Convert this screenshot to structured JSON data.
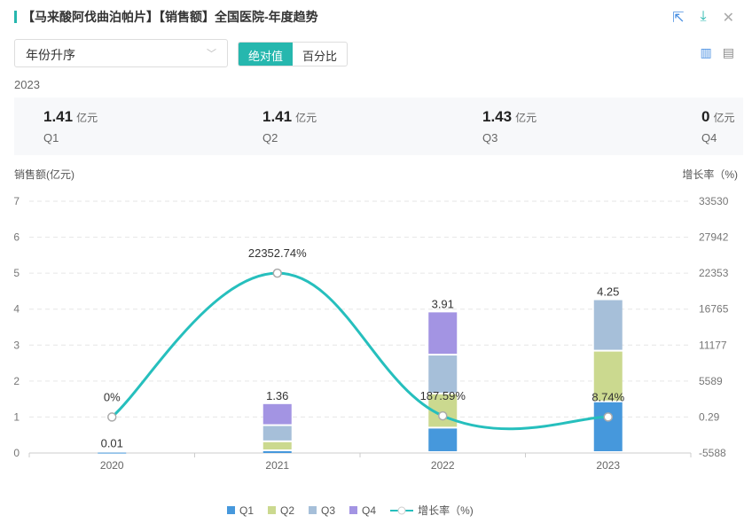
{
  "header": {
    "title": "【马来酸阿伐曲泊帕片】【销售额】全国医院-年度趋势"
  },
  "icons": {
    "export": "external-link-icon",
    "download": "download-icon",
    "close": "close-icon",
    "bar": "bar-chart-icon",
    "doc": "document-icon"
  },
  "controls": {
    "sort_value": "年份升序",
    "seg_abs": "绝对值",
    "seg_pct": "百分比"
  },
  "summary": {
    "year": "2023",
    "unit": "亿元",
    "items": [
      {
        "value": "1.41",
        "label": "Q1"
      },
      {
        "value": "1.41",
        "label": "Q2"
      },
      {
        "value": "1.43",
        "label": "Q3"
      },
      {
        "value": "0",
        "label": "Q4"
      }
    ]
  },
  "colors": {
    "Q1": "#4698dc",
    "Q2": "#cbd98f",
    "Q3": "#a6bfd9",
    "Q4": "#a394e3",
    "line": "#26bfbd",
    "accent": "#26b7ae"
  },
  "chart_data": {
    "type": "bar",
    "categories": [
      "2020",
      "2021",
      "2022",
      "2023"
    ],
    "ylabel": "销售额(亿元)",
    "y2label": "增长率（%)",
    "ylim": [
      0,
      7
    ],
    "yticks": [
      "0",
      "1",
      "2",
      "3",
      "4",
      "5",
      "6",
      "7"
    ],
    "y2lim": [
      -5588,
      33530
    ],
    "y2ticks": [
      "-5588",
      "0.29",
      "5589",
      "11177",
      "16765",
      "22353",
      "27942",
      "33530"
    ],
    "series": [
      {
        "name": "Q1",
        "values": [
          0.01,
          0.05,
          0.68,
          1.41
        ]
      },
      {
        "name": "Q2",
        "values": [
          0,
          0.25,
          0.95,
          1.41
        ]
      },
      {
        "name": "Q3",
        "values": [
          0,
          0.45,
          1.08,
          1.43
        ]
      },
      {
        "name": "Q4",
        "values": [
          0,
          0.61,
          1.2,
          0
        ]
      }
    ],
    "totals": [
      "0.01",
      "1.36",
      "3.91",
      "4.25"
    ],
    "line": {
      "name": "增长率（%)",
      "values": [
        0,
        22352.74,
        187.59,
        8.74
      ],
      "labels": [
        "0%",
        "22352.74%",
        "187.59%",
        "8.74%"
      ]
    }
  }
}
